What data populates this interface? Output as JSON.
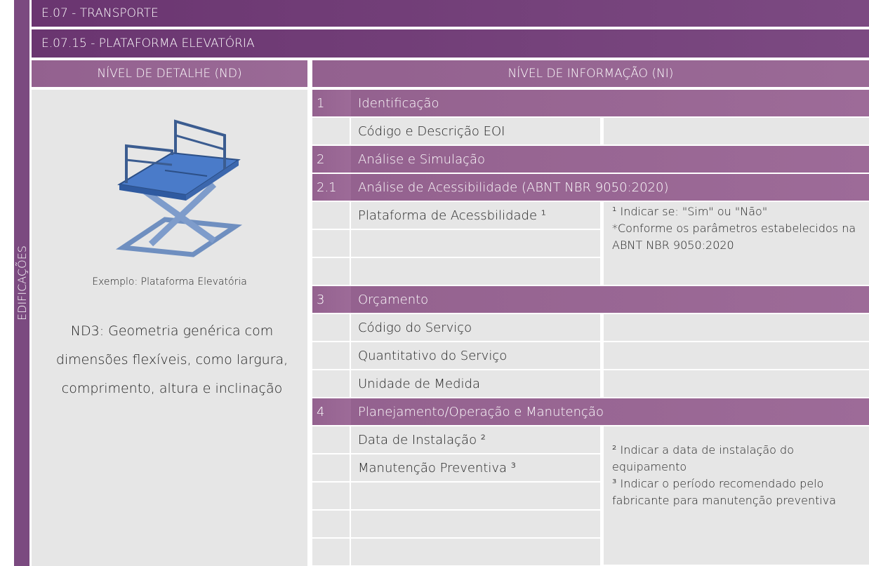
{
  "sidebar": "EDIFICAÇÕES",
  "header": {
    "title": "E.07 - TRANSPORTE",
    "subtitle": "E.07.15 - PLATAFORMA ELEVATÓRIA"
  },
  "columns": {
    "left": "NÍVEL DE DETALHE (ND)",
    "right": "NÍVEL DE INFORMAÇÃO (NI)"
  },
  "detail": {
    "caption": "Exemplo: Plataforma Elevatória",
    "description": "ND3: Geometria genérica com dimensões flexíveis, como largura, comprimento, altura e inclinação"
  },
  "sections": [
    {
      "number": "1",
      "title": "Identificação",
      "items": [
        "Código e Descrição EOI"
      ]
    },
    {
      "number": "2",
      "title": "Análise e Simulação"
    },
    {
      "number": "2.1",
      "title": "Análise de Acessibilidade (ABNT NBR 9050:2020)",
      "items": [
        "Plataforma de Acessbilidade ¹"
      ],
      "note": [
        "¹ Indicar se: \"Sim\" ou \"Não\"",
        "*Conforme os parâmetros estabelecidos na ABNT NBR 9050:2020"
      ]
    },
    {
      "number": "3",
      "title": "Orçamento",
      "items": [
        "Código do Serviço",
        "Quantitativo do Serviço",
        "Unidade de Medida"
      ]
    },
    {
      "number": "4",
      "title": "Planejamento/Operação e Manutenção",
      "items": [
        "Data de Instalação ²",
        "Manutenção Preventiva ³"
      ],
      "note": [
        "² Indicar a data de instalação do equipamento",
        "³ Indicar o período recomendado pelo fabricante para manutenção preventiva"
      ]
    }
  ]
}
